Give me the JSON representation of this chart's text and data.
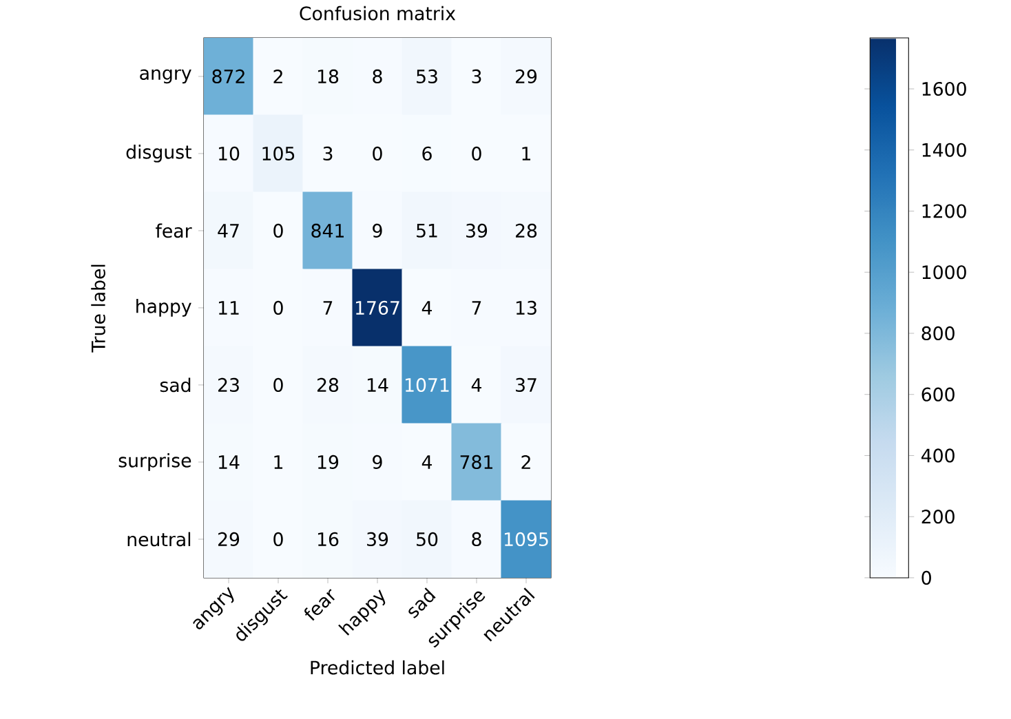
{
  "chart_data": {
    "type": "heatmap",
    "title": "Confusion matrix",
    "xlabel": "Predicted label",
    "ylabel": "True label",
    "categories": [
      "angry",
      "disgust",
      "fear",
      "happy",
      "sad",
      "surprise",
      "neutral"
    ],
    "y_categories": [
      "angry",
      "disgust",
      "fear",
      "happy",
      "sad",
      "surprise",
      "neutral"
    ],
    "cells": [
      [
        872,
        2,
        18,
        8,
        53,
        3,
        29
      ],
      [
        10,
        105,
        3,
        0,
        6,
        0,
        1
      ],
      [
        47,
        0,
        841,
        9,
        51,
        39,
        28
      ],
      [
        11,
        0,
        7,
        1767,
        4,
        7,
        13
      ],
      [
        23,
        0,
        28,
        14,
        1071,
        4,
        37
      ],
      [
        14,
        1,
        19,
        9,
        4,
        781,
        2
      ],
      [
        29,
        0,
        16,
        39,
        50,
        8,
        1095
      ]
    ],
    "clim": [
      0,
      1767
    ],
    "cticks": [
      0,
      200,
      400,
      600,
      800,
      1000,
      1200,
      1400,
      1600
    ],
    "data_labels": true
  }
}
